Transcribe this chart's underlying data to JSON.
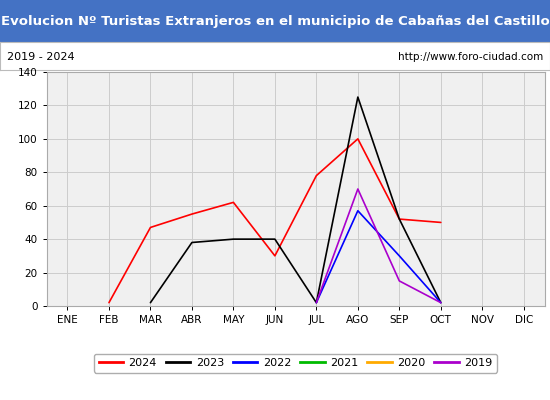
{
  "title": "Evolucion Nº Turistas Extranjeros en el municipio de Cabañas del Castillo",
  "subtitle_left": "2019 - 2024",
  "subtitle_right": "http://www.foro-ciudad.com",
  "title_bg": "#4472c4",
  "title_color": "#ffffff",
  "months": [
    "ENE",
    "FEB",
    "MAR",
    "ABR",
    "MAY",
    "JUN",
    "JUL",
    "AGO",
    "SEP",
    "OCT",
    "NOV",
    "DIC"
  ],
  "ylim": [
    0,
    140
  ],
  "yticks": [
    0,
    20,
    40,
    60,
    80,
    100,
    120,
    140
  ],
  "series": {
    "2024": {
      "color": "#ff0000",
      "data": [
        null,
        2,
        47,
        55,
        62,
        30,
        78,
        100,
        52,
        50,
        null,
        null
      ]
    },
    "2023": {
      "color": "#000000",
      "data": [
        null,
        null,
        2,
        38,
        40,
        40,
        2,
        125,
        52,
        2,
        null,
        null
      ]
    },
    "2022": {
      "color": "#0000ff",
      "data": [
        null,
        null,
        null,
        null,
        null,
        null,
        2,
        57,
        30,
        2,
        null,
        null
      ]
    },
    "2021": {
      "color": "#00bb00",
      "data": [
        null,
        null,
        null,
        null,
        null,
        null,
        null,
        null,
        null,
        null,
        null,
        null
      ]
    },
    "2020": {
      "color": "#ffaa00",
      "data": [
        null,
        null,
        null,
        null,
        null,
        null,
        null,
        null,
        null,
        null,
        null,
        null
      ]
    },
    "2019": {
      "color": "#aa00cc",
      "data": [
        null,
        null,
        null,
        null,
        null,
        null,
        2,
        70,
        15,
        2,
        null,
        null
      ]
    }
  },
  "legend_order": [
    "2024",
    "2023",
    "2022",
    "2021",
    "2020",
    "2019"
  ],
  "plot_bg": "#f0f0f0",
  "grid_color": "#cccccc",
  "fig_bg": "#ffffff"
}
